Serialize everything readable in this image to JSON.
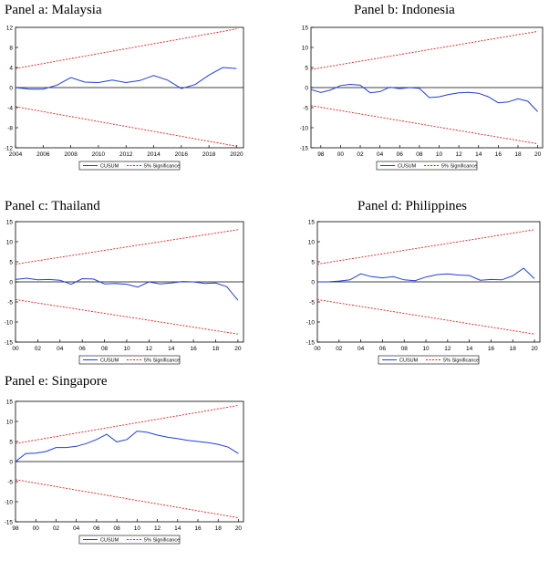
{
  "legend": {
    "cusum": "CUSUM",
    "sig": "5% Significance"
  },
  "colors": {
    "cusum": "#1f3fd6",
    "sig": "#e0201b",
    "axis": "#000000"
  },
  "chart_data": [
    {
      "id": "a",
      "type": "line",
      "title": "Panel a: Malaysia",
      "ylim": [
        -12,
        12
      ],
      "yticks": [
        -12,
        -8,
        -4,
        0,
        4,
        8,
        12
      ],
      "xlim": [
        2004,
        2020.5
      ],
      "xticks": [
        {
          "v": 2004,
          "l": "2004"
        },
        {
          "v": 2006,
          "l": "2006"
        },
        {
          "v": 2008,
          "l": "2008"
        },
        {
          "v": 2010,
          "l": "2010"
        },
        {
          "v": 2012,
          "l": "2012"
        },
        {
          "v": 2014,
          "l": "2014"
        },
        {
          "v": 2016,
          "l": "2016"
        },
        {
          "v": 2018,
          "l": "2018"
        },
        {
          "v": 2020,
          "l": "2020"
        }
      ],
      "series": [
        {
          "name": "CUSUM",
          "x": [
            2004,
            2005,
            2006,
            2007,
            2008,
            2009,
            2010,
            2011,
            2012,
            2013,
            2014,
            2015,
            2016,
            2017,
            2018,
            2019,
            2020
          ],
          "values": [
            0,
            -0.3,
            -0.3,
            0.5,
            2.0,
            1.1,
            1.0,
            1.5,
            1.0,
            1.4,
            2.4,
            1.5,
            -0.2,
            0.6,
            2.5,
            4.0,
            3.8
          ]
        },
        {
          "name": "5% Significance",
          "x": [
            2004,
            2020
          ],
          "values": [
            3.8,
            11.7
          ]
        },
        {
          "name": "5% Significance",
          "x": [
            2004,
            2020
          ],
          "values": [
            -3.8,
            -11.7
          ]
        }
      ]
    },
    {
      "id": "b",
      "type": "line",
      "title": "Panel b: Indonesia",
      "ylim": [
        -15,
        15
      ],
      "yticks": [
        -15,
        -10,
        -5,
        0,
        5,
        10,
        15
      ],
      "xlim": [
        1997,
        2020.5
      ],
      "xticks": [
        {
          "v": 1998,
          "l": "98"
        },
        {
          "v": 2000,
          "l": "00"
        },
        {
          "v": 2002,
          "l": "02"
        },
        {
          "v": 2004,
          "l": "04"
        },
        {
          "v": 2006,
          "l": "06"
        },
        {
          "v": 2008,
          "l": "08"
        },
        {
          "v": 2010,
          "l": "10"
        },
        {
          "v": 2012,
          "l": "12"
        },
        {
          "v": 2014,
          "l": "14"
        },
        {
          "v": 2016,
          "l": "16"
        },
        {
          "v": 2018,
          "l": "18"
        },
        {
          "v": 2020,
          "l": "20"
        }
      ],
      "series": [
        {
          "name": "CUSUM",
          "x": [
            1997,
            1998,
            1999,
            2000,
            2001,
            2002,
            2003,
            2004,
            2005,
            2006,
            2007,
            2008,
            2009,
            2010,
            2011,
            2012,
            2013,
            2014,
            2015,
            2016,
            2017,
            2018,
            2019,
            2020
          ],
          "values": [
            -0.5,
            -1.2,
            -0.6,
            0.5,
            0.8,
            0.6,
            -1.3,
            -1.0,
            0.1,
            -0.3,
            0,
            -0.2,
            -2.5,
            -2.3,
            -1.7,
            -1.3,
            -1.2,
            -1.4,
            -2.3,
            -3.8,
            -3.6,
            -2.8,
            -3.4,
            -6.0
          ]
        },
        {
          "name": "5% Significance",
          "x": [
            1997,
            2020
          ],
          "values": [
            4.5,
            14
          ]
        },
        {
          "name": "5% Significance",
          "x": [
            1997,
            2020
          ],
          "values": [
            -4.5,
            -14
          ]
        }
      ]
    },
    {
      "id": "c",
      "type": "line",
      "title": "Panel c: Thailand",
      "ylim": [
        -15,
        15
      ],
      "yticks": [
        -15,
        -10,
        -5,
        0,
        5,
        10,
        15
      ],
      "xlim": [
        2000,
        2020.5
      ],
      "xticks": [
        {
          "v": 2000,
          "l": "00"
        },
        {
          "v": 2002,
          "l": "02"
        },
        {
          "v": 2004,
          "l": "04"
        },
        {
          "v": 2006,
          "l": "06"
        },
        {
          "v": 2008,
          "l": "08"
        },
        {
          "v": 2010,
          "l": "10"
        },
        {
          "v": 2012,
          "l": "12"
        },
        {
          "v": 2014,
          "l": "14"
        },
        {
          "v": 2016,
          "l": "16"
        },
        {
          "v": 2018,
          "l": "18"
        },
        {
          "v": 2020,
          "l": "20"
        }
      ],
      "series": [
        {
          "name": "CUSUM",
          "x": [
            2000,
            2001,
            2002,
            2003,
            2004,
            2005,
            2006,
            2007,
            2008,
            2009,
            2010,
            2011,
            2012,
            2013,
            2014,
            2015,
            2016,
            2017,
            2018,
            2019,
            2020
          ],
          "values": [
            0.6,
            0.9,
            0.5,
            0.6,
            0.4,
            -0.6,
            0.8,
            0.7,
            -0.5,
            -0.4,
            -0.6,
            -1.3,
            0,
            -0.5,
            -0.3,
            0.1,
            0,
            -0.4,
            -0.3,
            -1.2,
            -4.6
          ]
        },
        {
          "name": "5% Significance",
          "x": [
            2000,
            2020
          ],
          "values": [
            4.4,
            13
          ]
        },
        {
          "name": "5% Significance",
          "x": [
            2000,
            2020
          ],
          "values": [
            -4.4,
            -13
          ]
        }
      ]
    },
    {
      "id": "d",
      "type": "line",
      "title": "Panel d: Philippines",
      "ylim": [
        -15,
        15
      ],
      "yticks": [
        -15,
        -10,
        -5,
        0,
        5,
        10,
        15
      ],
      "xlim": [
        2000,
        2020.5
      ],
      "xticks": [
        {
          "v": 2000,
          "l": "00"
        },
        {
          "v": 2002,
          "l": "02"
        },
        {
          "v": 2004,
          "l": "04"
        },
        {
          "v": 2006,
          "l": "06"
        },
        {
          "v": 2008,
          "l": "08"
        },
        {
          "v": 2010,
          "l": "10"
        },
        {
          "v": 2012,
          "l": "12"
        },
        {
          "v": 2014,
          "l": "14"
        },
        {
          "v": 2016,
          "l": "16"
        },
        {
          "v": 2018,
          "l": "18"
        },
        {
          "v": 2020,
          "l": "20"
        }
      ],
      "series": [
        {
          "name": "CUSUM",
          "x": [
            2000,
            2001,
            2002,
            2003,
            2004,
            2005,
            2006,
            2007,
            2008,
            2009,
            2010,
            2011,
            2012,
            2013,
            2014,
            2015,
            2016,
            2017,
            2018,
            2019,
            2020
          ],
          "values": [
            0,
            0,
            0.2,
            0.5,
            2.0,
            1.3,
            1.0,
            1.3,
            0.5,
            0.3,
            1.2,
            1.8,
            2.0,
            1.7,
            1.6,
            0.4,
            0.6,
            0.5,
            1.5,
            3.4,
            0.8
          ]
        },
        {
          "name": "5% Significance",
          "x": [
            2000,
            2020
          ],
          "values": [
            4.4,
            13
          ]
        },
        {
          "name": "5% Significance",
          "x": [
            2000,
            2020
          ],
          "values": [
            -4.4,
            -13
          ]
        }
      ]
    },
    {
      "id": "e",
      "type": "line",
      "title": "Panel e: Singapore",
      "ylim": [
        -15,
        15
      ],
      "yticks": [
        -15,
        -10,
        -5,
        0,
        5,
        10,
        15
      ],
      "xlim": [
        1998,
        2020.5
      ],
      "xticks": [
        {
          "v": 1998,
          "l": "98"
        },
        {
          "v": 2000,
          "l": "00"
        },
        {
          "v": 2002,
          "l": "02"
        },
        {
          "v": 2004,
          "l": "04"
        },
        {
          "v": 2006,
          "l": "06"
        },
        {
          "v": 2008,
          "l": "08"
        },
        {
          "v": 2010,
          "l": "10"
        },
        {
          "v": 2012,
          "l": "12"
        },
        {
          "v": 2014,
          "l": "14"
        },
        {
          "v": 2016,
          "l": "16"
        },
        {
          "v": 2018,
          "l": "18"
        },
        {
          "v": 2020,
          "l": "20"
        }
      ],
      "series": [
        {
          "name": "CUSUM",
          "x": [
            1998,
            1999,
            2000,
            2001,
            2002,
            2003,
            2004,
            2005,
            2006,
            2007,
            2008,
            2009,
            2010,
            2011,
            2012,
            2013,
            2014,
            2015,
            2016,
            2017,
            2018,
            2019,
            2020
          ],
          "values": [
            0,
            2.0,
            2.1,
            2.5,
            3.5,
            3.5,
            3.8,
            4.5,
            5.5,
            6.8,
            4.9,
            5.5,
            7.6,
            7.3,
            6.6,
            6.1,
            5.7,
            5.3,
            5.0,
            4.7,
            4.3,
            3.6,
            2.0
          ]
        },
        {
          "name": "5% Significance",
          "x": [
            1998,
            2020
          ],
          "values": [
            4.5,
            14
          ]
        },
        {
          "name": "5% Significance",
          "x": [
            1998,
            2020
          ],
          "values": [
            -4.5,
            -14
          ]
        }
      ]
    }
  ]
}
